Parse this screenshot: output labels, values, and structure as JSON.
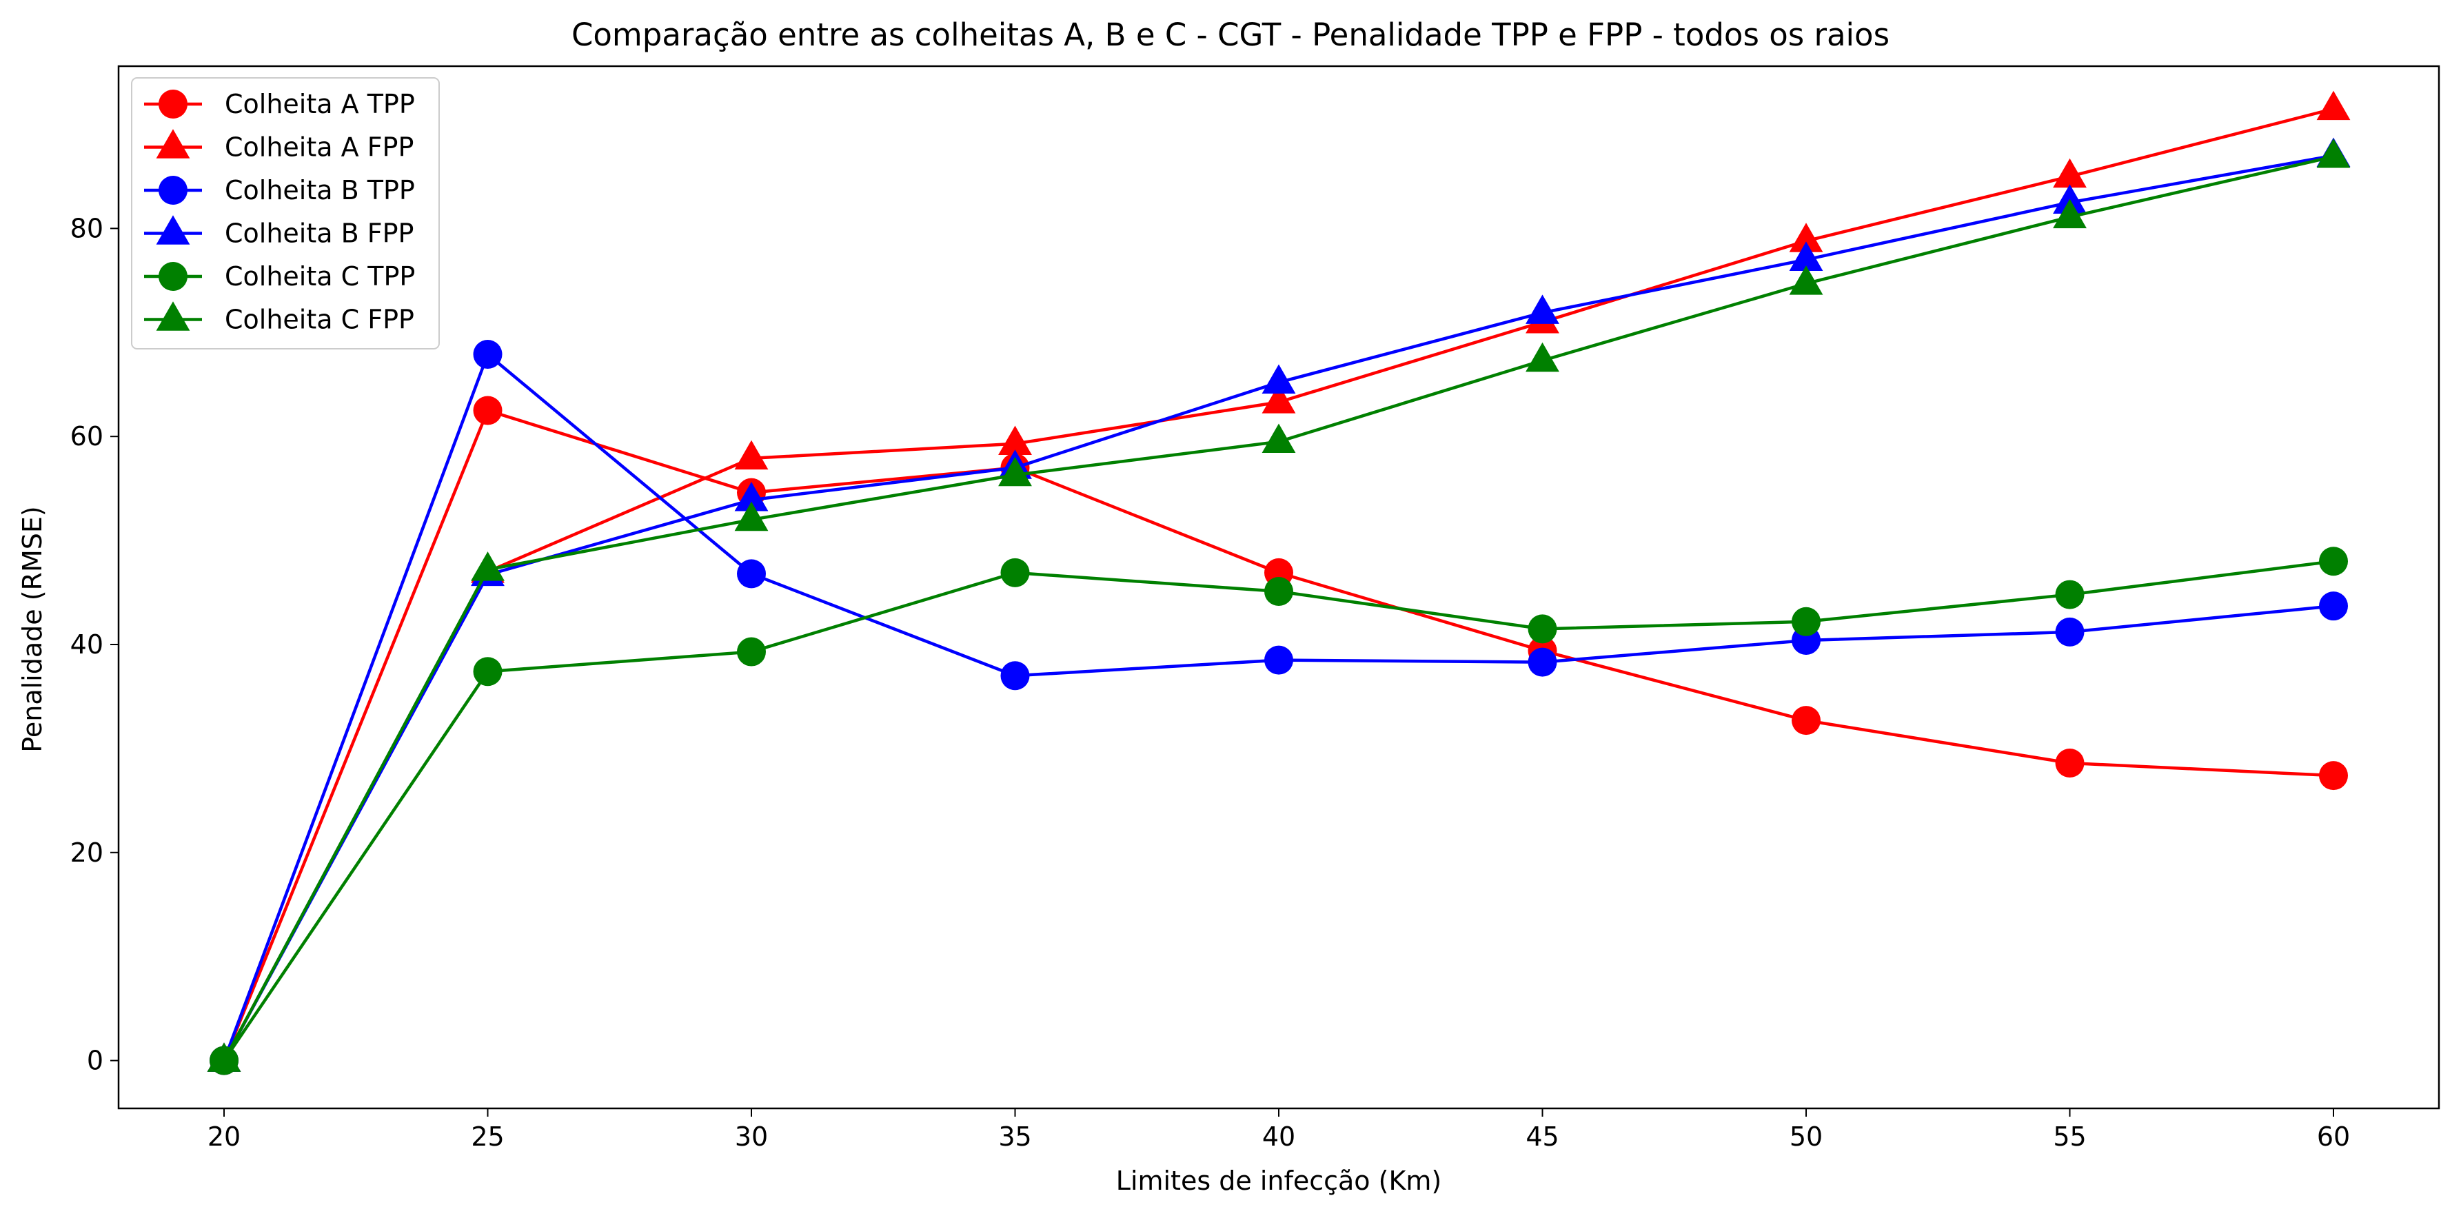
{
  "chart_data": {
    "type": "line",
    "title": "Comparação entre as colheitas A, B e C - CGT - Penalidade TPP e FPP - todos os raios",
    "xlabel": "Limites de infecção (Km)",
    "ylabel": "Penalidade (RMSE)",
    "x": [
      20,
      25,
      30,
      35,
      40,
      45,
      50,
      55,
      60
    ],
    "xlim": [
      18,
      62
    ],
    "ylim": [
      -4.6,
      95.6
    ],
    "xticks": [
      "20",
      "25",
      "30",
      "35",
      "40",
      "45",
      "50",
      "55",
      "60"
    ],
    "yticks": [
      "0",
      "20",
      "40",
      "60",
      "80"
    ],
    "ytick_values": [
      0,
      20,
      40,
      60,
      80
    ],
    "grid": false,
    "legend_position": "top-left",
    "series": [
      {
        "name": "Colheita A TPP",
        "color": "#ff0000",
        "marker": "circle",
        "values": [
          0,
          62.5,
          54.6,
          57.0,
          46.9,
          39.4,
          32.7,
          28.6,
          27.4
        ]
      },
      {
        "name": "Colheita A FPP",
        "color": "#ff0000",
        "marker": "triangle",
        "values": [
          0,
          47.0,
          57.9,
          59.3,
          63.3,
          71.0,
          78.8,
          85.0,
          91.5
        ]
      },
      {
        "name": "Colheita B TPP",
        "color": "#0000ff",
        "marker": "circle",
        "values": [
          0,
          67.9,
          46.8,
          37.0,
          38.5,
          38.3,
          40.4,
          41.2,
          43.7
        ]
      },
      {
        "name": "Colheita B FPP",
        "color": "#0000ff",
        "marker": "triangle",
        "values": [
          0,
          46.7,
          53.9,
          57.0,
          65.2,
          71.9,
          77.0,
          82.5,
          87.0
        ]
      },
      {
        "name": "Colheita C TPP",
        "color": "#008000",
        "marker": "circle",
        "values": [
          0,
          37.4,
          39.3,
          46.9,
          45.1,
          41.5,
          42.2,
          44.8,
          48.0
        ]
      },
      {
        "name": "Colheita C FPP",
        "color": "#008000",
        "marker": "triangle",
        "values": [
          0,
          47.2,
          52.0,
          56.3,
          59.5,
          67.3,
          74.7,
          81.1,
          86.9
        ]
      }
    ]
  }
}
